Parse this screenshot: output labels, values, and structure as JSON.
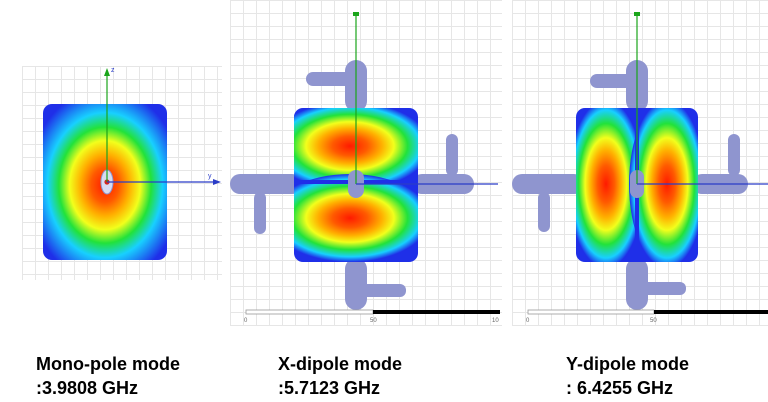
{
  "panels": [
    {
      "id": "mono",
      "mode": "monopole",
      "axis_labels": {
        "up": "z",
        "right": "y"
      },
      "caption": {
        "line1": "Mono-pole mode",
        "line2": ":3.9808 GHz"
      }
    },
    {
      "id": "x",
      "mode": "x-dipole",
      "scale": {
        "start": "0",
        "mid": "50",
        "end": "10"
      },
      "caption": {
        "line1": "X-dipole mode",
        "line2": ":5.7123 GHz"
      }
    },
    {
      "id": "y",
      "mode": "y-dipole",
      "scale": {
        "start": "0",
        "mid": "50",
        "end": ""
      },
      "caption": {
        "line1": "Y-dipole mode",
        "line2": ": 6.4255 GHz"
      }
    }
  ],
  "colors": {
    "field_low": "#1f2fe8",
    "field_mid": "#22e23a",
    "field_mid2": "#f2ff1c",
    "field_high": "#ff1a00",
    "feed": "#8f95cf",
    "axis_z": "#1aa51a",
    "axis_y": "#2a3cc7"
  }
}
